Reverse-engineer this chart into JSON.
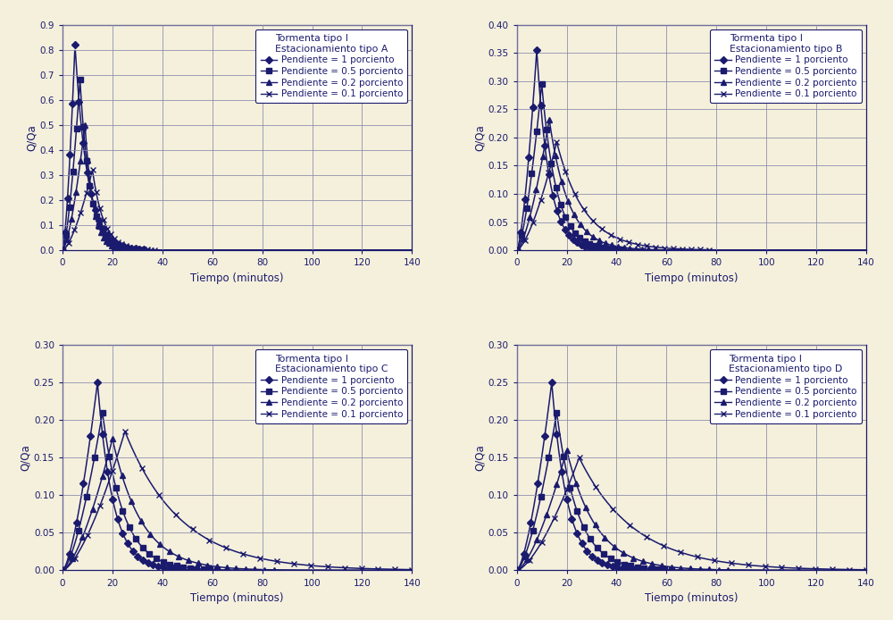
{
  "background_color": "#f5f0dc",
  "line_color": "#1a1a6e",
  "grid_color": "#8888aa",
  "subplots": [
    {
      "title": "Tormenta tipo I\nEstacionamiento tipo A",
      "ylim": [
        0,
        0.9
      ],
      "yticks": [
        0,
        0.1,
        0.2,
        0.3,
        0.4,
        0.5,
        0.6,
        0.7,
        0.8,
        0.9
      ],
      "series": [
        {
          "peak_t": 5,
          "peak_q": 0.82,
          "decay": 0.2
        },
        {
          "peak_t": 7,
          "peak_q": 0.68,
          "decay": 0.25
        },
        {
          "peak_t": 9,
          "peak_q": 0.5,
          "decay": 0.3
        },
        {
          "peak_t": 12,
          "peak_q": 0.32,
          "decay": 0.22
        }
      ]
    },
    {
      "title": "Tormenta tipo I\nEstacionamiento tipo B",
      "ylim": [
        0,
        0.4
      ],
      "yticks": [
        0,
        0.05,
        0.1,
        0.15,
        0.2,
        0.25,
        0.3,
        0.35,
        0.4
      ],
      "series": [
        {
          "peak_t": 8,
          "peak_q": 0.355,
          "decay": 0.2
        },
        {
          "peak_t": 10,
          "peak_q": 0.295,
          "decay": 0.17
        },
        {
          "peak_t": 13,
          "peak_q": 0.232,
          "decay": 0.13
        },
        {
          "peak_t": 16,
          "peak_q": 0.192,
          "decay": 0.09
        }
      ]
    },
    {
      "title": "Tormenta tipo I\nEstacionamiento tipo C",
      "ylim": [
        0,
        0.3
      ],
      "yticks": [
        0,
        0.05,
        0.1,
        0.15,
        0.2,
        0.25,
        0.3
      ],
      "series": [
        {
          "peak_t": 14,
          "peak_q": 0.25,
          "decay": 0.16
        },
        {
          "peak_t": 16,
          "peak_q": 0.21,
          "decay": 0.12
        },
        {
          "peak_t": 20,
          "peak_q": 0.175,
          "decay": 0.085
        },
        {
          "peak_t": 25,
          "peak_q": 0.185,
          "decay": 0.045
        }
      ]
    },
    {
      "title": "Tormenta tipo I\nEstacionamiento tipo D",
      "ylim": [
        0,
        0.3
      ],
      "yticks": [
        0,
        0.05,
        0.1,
        0.15,
        0.2,
        0.25,
        0.3
      ],
      "series": [
        {
          "peak_t": 14,
          "peak_q": 0.25,
          "decay": 0.16
        },
        {
          "peak_t": 16,
          "peak_q": 0.21,
          "decay": 0.12
        },
        {
          "peak_t": 20,
          "peak_q": 0.16,
          "decay": 0.085
        },
        {
          "peak_t": 25,
          "peak_q": 0.15,
          "decay": 0.045
        }
      ]
    }
  ],
  "markers": [
    "D",
    "s",
    "^",
    "x"
  ],
  "marker_sizes": [
    4,
    4,
    4,
    5
  ],
  "legend_labels": [
    "Pendiente = 1 porciento",
    "Pendiente = 0.5 porciento",
    "Pendiente = 0.2 porciento",
    "Pendiente = 0.1 porciento"
  ],
  "xlabel": "Tiempo (minutos)",
  "ylabel": "Q/Qa",
  "xlim": [
    0,
    140
  ],
  "xticks": [
    0,
    20,
    40,
    60,
    80,
    100,
    120,
    140
  ]
}
